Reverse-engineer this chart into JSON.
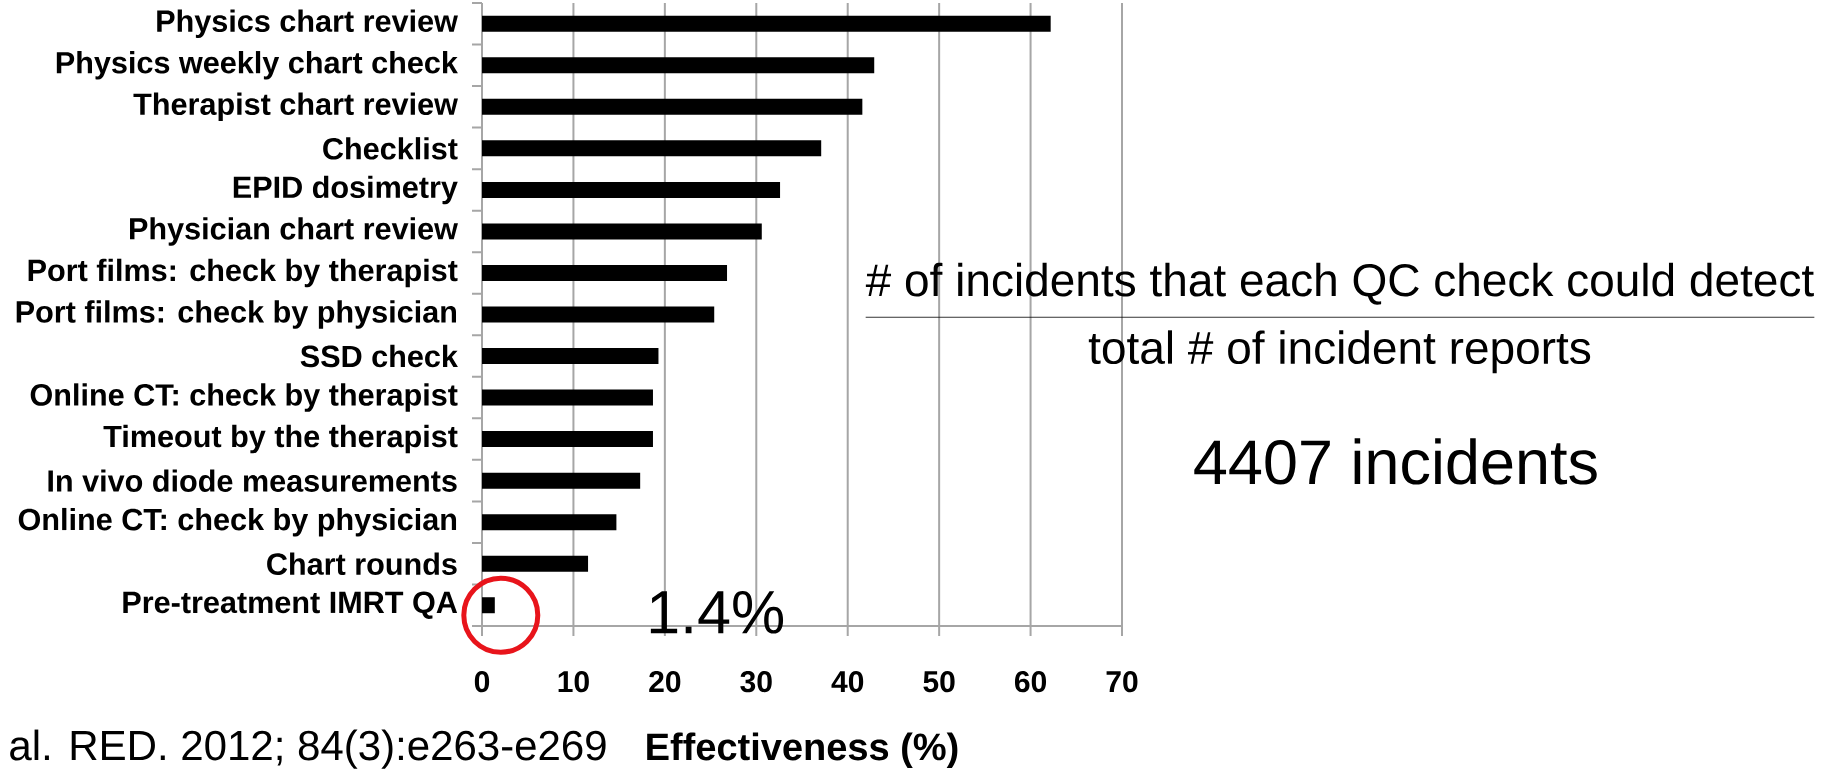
{
  "chart_data": {
    "type": "bar",
    "orientation": "horizontal",
    "xlabel": "Effectiveness (%)",
    "categories": [
      "Physics chart review",
      "Physics weekly chart check",
      "Therapist chart review",
      "Checklist",
      "EPID dosimetry",
      "Physician chart review",
      "Port films: check by therapist",
      "Port films: check by physician",
      "SSD check",
      "Online CT: check by therapist",
      "Timeout by the therapist",
      "In vivo diode measurements",
      "Online CT: check by physician",
      "Chart rounds",
      "Pre-treatment IMRT QA"
    ],
    "values": [
      62.2,
      42.9,
      41.6,
      37.1,
      32.6,
      30.6,
      26.8,
      25.4,
      19.3,
      18.7,
      18.7,
      17.3,
      14.7,
      11.6,
      1.4
    ],
    "color": "#000000",
    "xlim": [
      0,
      70
    ],
    "xticks": [
      0,
      10,
      20,
      30,
      40,
      50,
      60,
      70
    ],
    "grid": "x",
    "annotations": [
      {
        "text": "1.4%",
        "x": 1.4,
        "y": "Pre-treatment IMRT QA"
      },
      "\\frac{\\mbox{\\# of incidents that each QC check could detect}}{\\mbox{total \\# of incident reports}}",
      "4407 incidents",
      "al. RED. 2012; 84(3):e263-e269"
    ]
  }
}
